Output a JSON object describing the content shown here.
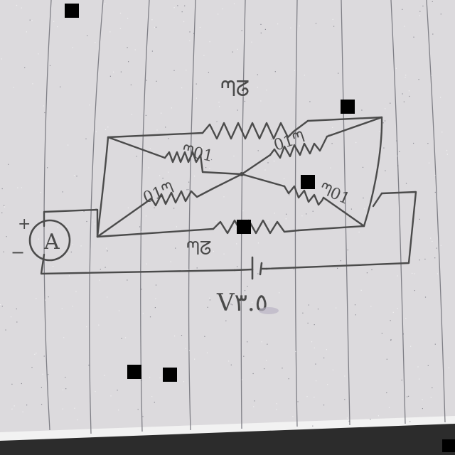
{
  "sheet": {
    "paper_color": "#dcdadd",
    "ruling_color": "#7f7f86",
    "ink_color": "#4b4b4b"
  },
  "circuit": {
    "top_resistor_label": "ᘉᘔ",
    "bottom_resistor_label": "ᘉᘔ",
    "upper_left_diag_label": "ᘉ01",
    "upper_right_diag_label": "01ᘉ",
    "lower_left_diag_label": "01ᘉ",
    "lower_right_diag_label": "ᘉ01",
    "ammeter_symbol": "A",
    "ammeter_plus": "+",
    "ammeter_minus": "−",
    "battery_label": "V٣.٥"
  },
  "artifacts": {
    "redaction_marks": 8
  }
}
